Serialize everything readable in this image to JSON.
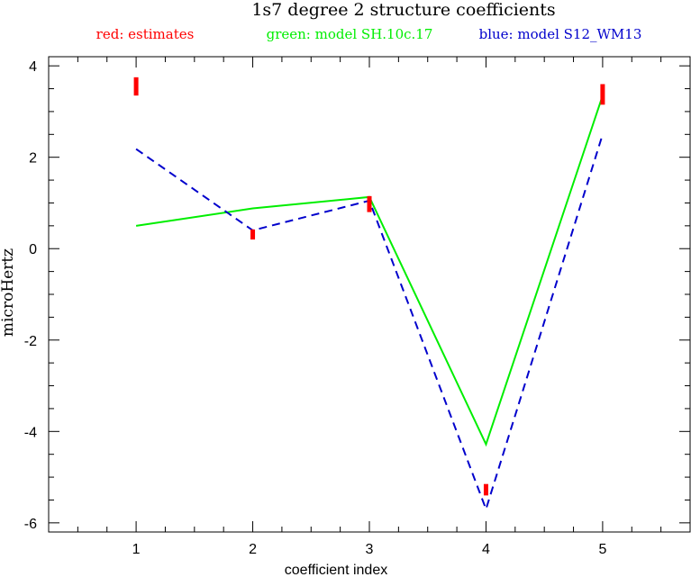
{
  "chart_data": {
    "type": "line",
    "title": "1s7 degree 2 structure coefficients",
    "legend": {
      "placement": "top",
      "entries": [
        {
          "label": "red: estimates",
          "color": "#ff0000"
        },
        {
          "label": "green: model SH.10c.17",
          "color": "#00ee00"
        },
        {
          "label": "blue: model S12_WM13",
          "color": "#0000cc"
        }
      ]
    },
    "xlabel": "coefficient index",
    "ylabel": "microHertz",
    "xlim": [
      0.25,
      5.75
    ],
    "ylim": [
      -6.2,
      4.2
    ],
    "grid": false,
    "x_ticks": [
      1,
      2,
      3,
      4,
      5
    ],
    "y_ticks": [
      -6,
      -4,
      -2,
      0,
      2,
      4
    ],
    "series": [
      {
        "style": "errorbar",
        "color": "#ff0000",
        "x": [
          1,
          2,
          3,
          4,
          5
        ],
        "low": [
          3.35,
          0.2,
          0.8,
          -5.4,
          3.15
        ],
        "high": [
          3.75,
          0.42,
          1.15,
          -5.15,
          3.6
        ]
      },
      {
        "style": "solid",
        "color": "#00ee00",
        "x": [
          1,
          2,
          3,
          4,
          5
        ],
        "y": [
          0.5,
          0.88,
          1.13,
          -4.28,
          3.35
        ]
      },
      {
        "style": "dashed",
        "color": "#0000cc",
        "x": [
          1,
          2,
          3,
          4,
          5
        ],
        "y": [
          2.18,
          0.4,
          1.05,
          -5.7,
          2.5
        ]
      }
    ]
  }
}
